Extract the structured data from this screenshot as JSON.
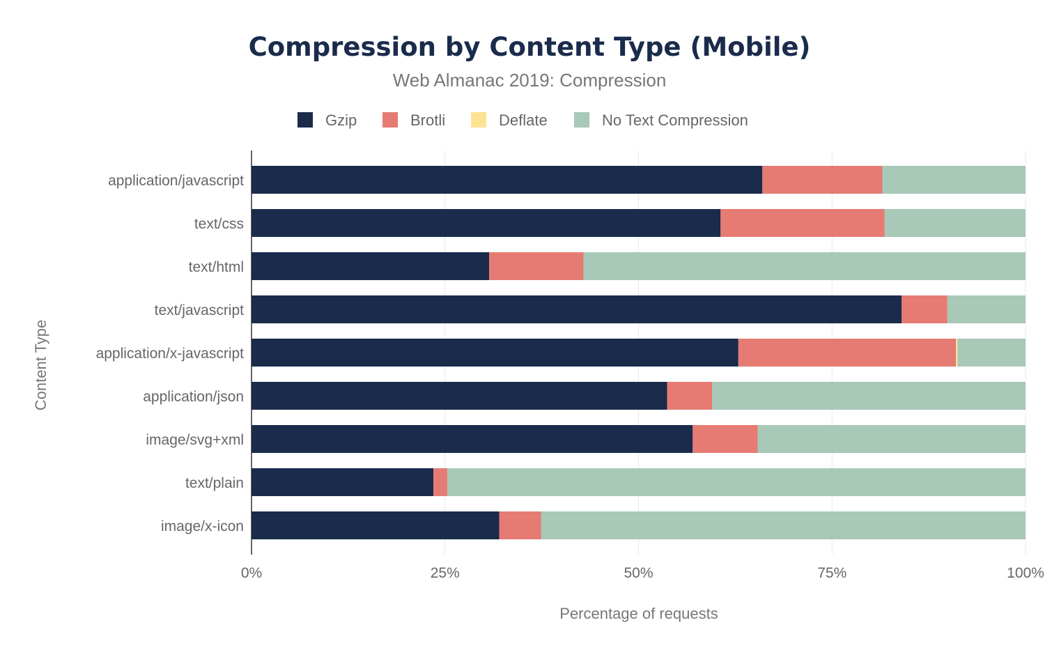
{
  "chart_data": {
    "type": "bar",
    "orientation": "horizontal",
    "stacked": true,
    "title": "Compression by Content Type (Mobile)",
    "subtitle": "Web Almanac 2019: Compression",
    "xlabel": "Percentage of requests",
    "ylabel": "Content Type",
    "xlim": [
      0,
      100
    ],
    "xticks": [
      "0%",
      "25%",
      "50%",
      "75%",
      "100%"
    ],
    "xtick_values": [
      0,
      25,
      50,
      75,
      100
    ],
    "grid": true,
    "legend_position": "top",
    "categories": [
      "application/javascript",
      "text/css",
      "text/html",
      "text/javascript",
      "application/x-javascript",
      "application/json",
      "image/svg+xml",
      "text/plain",
      "image/x-icon"
    ],
    "series": [
      {
        "name": "Gzip",
        "color": "#1a2b4b",
        "values": [
          66.0,
          60.6,
          30.7,
          84.0,
          62.9,
          53.7,
          57.0,
          23.5,
          32.0
        ]
      },
      {
        "name": "Brotli",
        "color": "#e67b73",
        "values": [
          15.5,
          21.2,
          12.2,
          5.9,
          28.1,
          5.8,
          8.4,
          1.8,
          5.4
        ]
      },
      {
        "name": "Deflate",
        "color": "#fde293",
        "values": [
          0.0,
          0.0,
          0.0,
          0.0,
          0.2,
          0.0,
          0.0,
          0.0,
          0.0
        ]
      },
      {
        "name": "No Text Compression",
        "color": "#a8c8b8",
        "values": [
          18.5,
          18.2,
          57.1,
          10.1,
          8.8,
          40.5,
          34.6,
          74.7,
          62.6
        ]
      }
    ]
  }
}
